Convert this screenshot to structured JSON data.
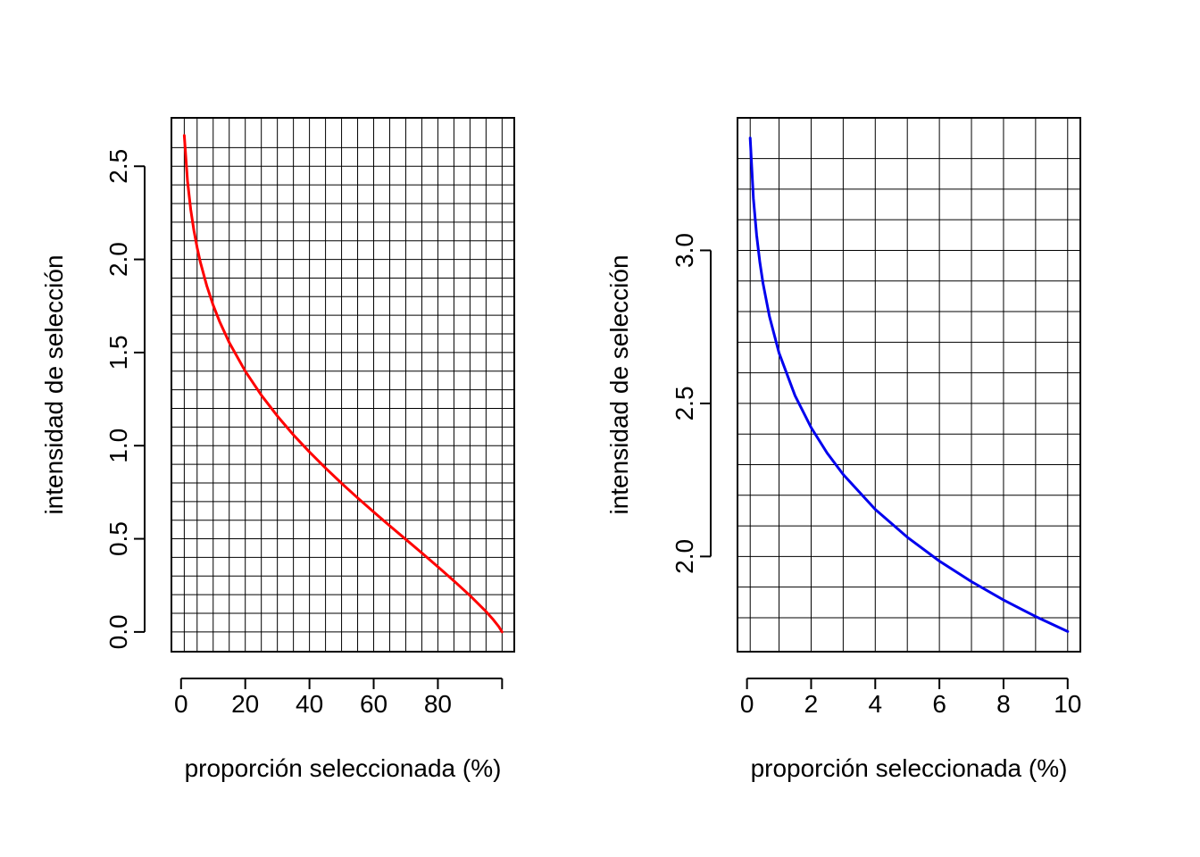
{
  "chart_data": [
    {
      "type": "line",
      "title": "",
      "xlabel": "proporción seleccionada (%)",
      "ylabel": "intensidad de selección",
      "xlim": [
        -3,
        103.8
      ],
      "ylim": [
        -0.106,
        2.76
      ],
      "x_ticks": [
        0,
        20,
        40,
        60,
        80,
        100
      ],
      "x_tick_labels": [
        "0",
        "20",
        "40",
        "60",
        "80",
        ""
      ],
      "y_ticks": [
        0,
        0.5,
        1.0,
        1.5,
        2.0,
        2.5
      ],
      "y_tick_labels": [
        "0.0",
        "0.5",
        "1.0",
        "1.5",
        "2.0",
        "2.5"
      ],
      "grid": true,
      "grid_x": [
        1,
        5,
        10,
        15,
        20,
        25,
        30,
        35,
        40,
        45,
        50,
        55,
        60,
        65,
        70,
        75,
        80,
        85,
        90,
        95,
        100
      ],
      "grid_y": [
        0,
        0.1,
        0.2,
        0.3,
        0.4,
        0.5,
        0.6,
        0.7,
        0.8,
        0.9,
        1.0,
        1.1,
        1.2,
        1.3,
        1.4,
        1.5,
        1.6,
        1.7,
        1.8,
        1.9,
        2.0,
        2.1,
        2.2,
        2.3,
        2.4,
        2.5,
        2.6
      ],
      "series": [
        {
          "name": "intensidad",
          "color": "#ff0000",
          "x": [
            1,
            2,
            3,
            4,
            5,
            6,
            8,
            10,
            12,
            15,
            20,
            25,
            30,
            35,
            40,
            45,
            50,
            55,
            60,
            65,
            70,
            75,
            80,
            85,
            90,
            95,
            97,
            99,
            100
          ],
          "y": [
            2.665,
            2.421,
            2.268,
            2.154,
            2.063,
            1.985,
            1.858,
            1.755,
            1.667,
            1.554,
            1.4,
            1.271,
            1.159,
            1.058,
            0.966,
            0.88,
            0.798,
            0.72,
            0.644,
            0.57,
            0.497,
            0.424,
            0.35,
            0.274,
            0.195,
            0.109,
            0.071,
            0.028,
            0
          ]
        }
      ]
    },
    {
      "type": "line",
      "title": "",
      "xlabel": "proporción seleccionada (%)",
      "ylabel": "intensidad de selección",
      "xlim": [
        -0.296,
        10.396
      ],
      "ylim": [
        1.689,
        3.433
      ],
      "x_ticks": [
        0,
        2,
        4,
        6,
        8,
        10
      ],
      "x_tick_labels": [
        "0",
        "2",
        "4",
        "6",
        "8",
        "10"
      ],
      "y_ticks": [
        2.0,
        2.5,
        3.0
      ],
      "y_tick_labels": [
        "2.0",
        "2.5",
        "3.0"
      ],
      "grid": true,
      "grid_x": [
        0.1,
        1,
        2,
        3,
        4,
        5,
        6,
        7,
        8,
        9,
        10
      ],
      "grid_y": [
        1.8,
        1.9,
        2.0,
        2.1,
        2.2,
        2.3,
        2.4,
        2.5,
        2.6,
        2.7,
        2.8,
        2.9,
        3.0,
        3.1,
        3.2,
        3.3
      ],
      "series": [
        {
          "name": "intensidad",
          "color": "#0000ee",
          "x": [
            0.1,
            0.2,
            0.3,
            0.4,
            0.5,
            0.7,
            1.0,
            1.5,
            2.0,
            2.5,
            3.0,
            4.0,
            5.0,
            6.0,
            7.0,
            8.0,
            9.0,
            10.0
          ],
          "y": [
            3.367,
            3.17,
            3.05,
            2.962,
            2.892,
            2.784,
            2.665,
            2.525,
            2.421,
            2.338,
            2.268,
            2.154,
            2.063,
            1.985,
            1.918,
            1.858,
            1.804,
            1.755
          ]
        }
      ]
    }
  ]
}
